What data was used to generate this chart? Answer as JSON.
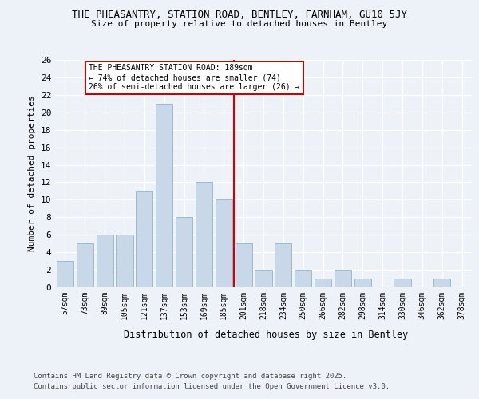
{
  "title1": "THE PHEASANTRY, STATION ROAD, BENTLEY, FARNHAM, GU10 5JY",
  "title2": "Size of property relative to detached houses in Bentley",
  "xlabel": "Distribution of detached houses by size in Bentley",
  "ylabel": "Number of detached properties",
  "categories": [
    "57sqm",
    "73sqm",
    "89sqm",
    "105sqm",
    "121sqm",
    "137sqm",
    "153sqm",
    "169sqm",
    "185sqm",
    "201sqm",
    "218sqm",
    "234sqm",
    "250sqm",
    "266sqm",
    "282sqm",
    "298sqm",
    "314sqm",
    "330sqm",
    "346sqm",
    "362sqm",
    "378sqm"
  ],
  "values": [
    3,
    5,
    6,
    6,
    11,
    21,
    8,
    12,
    10,
    5,
    2,
    5,
    2,
    1,
    2,
    1,
    0,
    1,
    0,
    1,
    0
  ],
  "bar_color": "#c8d8e8",
  "bar_edge_color": "#a0b8cc",
  "vline_x": 8.5,
  "vline_color": "#cc0000",
  "annotation_text": "THE PHEASANTRY STATION ROAD: 189sqm\n← 74% of detached houses are smaller (74)\n26% of semi-detached houses are larger (26) →",
  "annotation_box_color": "#ffffff",
  "annotation_box_edge": "#cc0000",
  "ylim": [
    0,
    26
  ],
  "yticks": [
    0,
    2,
    4,
    6,
    8,
    10,
    12,
    14,
    16,
    18,
    20,
    22,
    24,
    26
  ],
  "footer1": "Contains HM Land Registry data © Crown copyright and database right 2025.",
  "footer2": "Contains public sector information licensed under the Open Government Licence v3.0.",
  "bg_color": "#edf2f8",
  "plot_bg_color": "#edf2f8"
}
